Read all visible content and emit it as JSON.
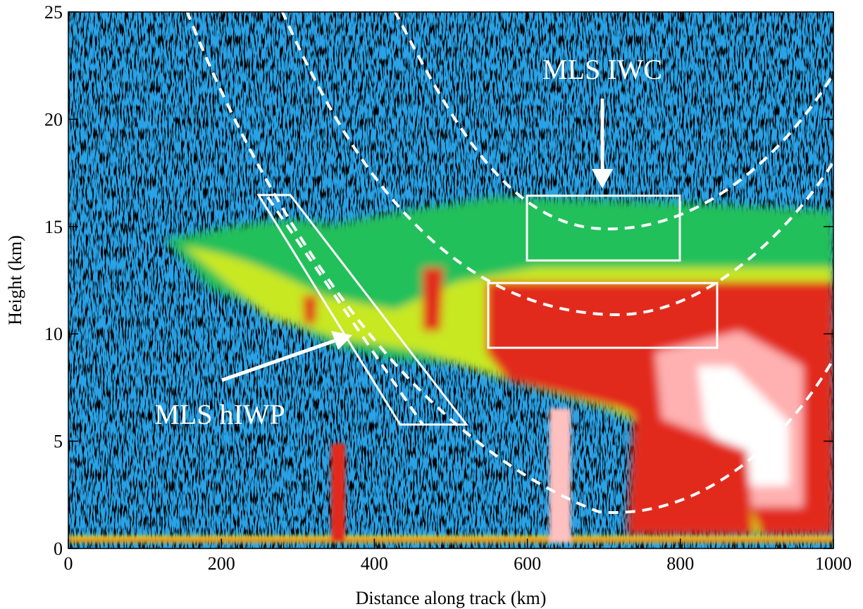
{
  "chart_data": {
    "type": "image",
    "xlabel": "Distance along track (km)",
    "ylabel": "Height (km)",
    "xlim": [
      0,
      1000
    ],
    "ylim": [
      0,
      25
    ],
    "xticks": [
      0,
      200,
      400,
      600,
      800,
      1000
    ],
    "yticks": [
      0,
      5,
      10,
      15,
      20,
      25
    ],
    "annotations": [
      "MLS IWC",
      "MLS hIWP"
    ]
  }
}
